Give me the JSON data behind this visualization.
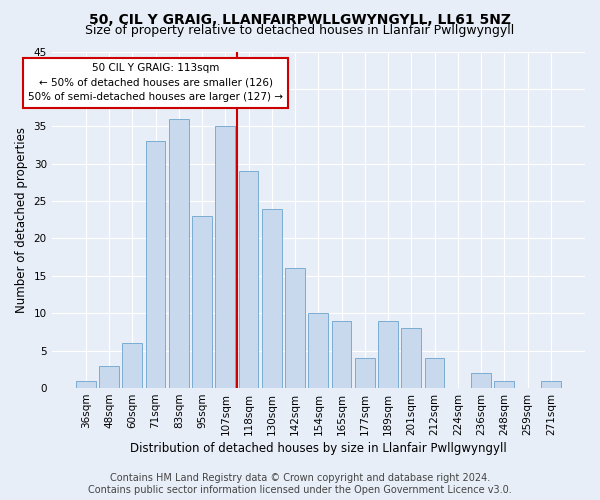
{
  "title": "50, CIL Y GRAIG, LLANFAIRPWLLGWYNGYLL, LL61 5NZ",
  "subtitle": "Size of property relative to detached houses in Llanfair Pwllgwyngyll",
  "xlabel": "Distribution of detached houses by size in Llanfair Pwllgwyngyll",
  "ylabel": "Number of detached properties",
  "categories": [
    "36sqm",
    "48sqm",
    "60sqm",
    "71sqm",
    "83sqm",
    "95sqm",
    "107sqm",
    "118sqm",
    "130sqm",
    "142sqm",
    "154sqm",
    "165sqm",
    "177sqm",
    "189sqm",
    "201sqm",
    "212sqm",
    "224sqm",
    "236sqm",
    "248sqm",
    "259sqm",
    "271sqm"
  ],
  "values": [
    1,
    3,
    6,
    33,
    36,
    23,
    35,
    29,
    24,
    16,
    10,
    9,
    4,
    9,
    8,
    4,
    0,
    2,
    1,
    0,
    1
  ],
  "bar_color": "#c8d9ee",
  "bar_edge_color": "#7aadd4",
  "ylim": [
    0,
    45
  ],
  "yticks": [
    0,
    5,
    10,
    15,
    20,
    25,
    30,
    35,
    40,
    45
  ],
  "vline_x_index": 7,
  "vline_color": "#cc0000",
  "annotation_text": "50 CIL Y GRAIG: 113sqm\n← 50% of detached houses are smaller (126)\n50% of semi-detached houses are larger (127) →",
  "annotation_box_color": "#ffffff",
  "annotation_box_edge_color": "#cc0000",
  "footer_line1": "Contains HM Land Registry data © Crown copyright and database right 2024.",
  "footer_line2": "Contains public sector information licensed under the Open Government Licence v3.0.",
  "background_color": "#e8eef7",
  "grid_color": "#ffffff",
  "title_fontsize": 10,
  "subtitle_fontsize": 9,
  "axis_label_fontsize": 8.5,
  "tick_fontsize": 7.5,
  "footer_fontsize": 7,
  "annotation_fontsize": 7.5
}
